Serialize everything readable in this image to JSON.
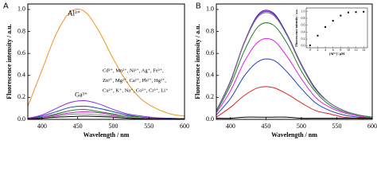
{
  "chart_data": [
    {
      "type": "line",
      "panel_label": "A",
      "x_label": "Wavelength / nm",
      "y_label": "Fluorescence intensity / a.u.",
      "xlim": [
        380,
        600
      ],
      "xticks": [
        400,
        450,
        500,
        550,
        600
      ],
      "ylim": [
        0,
        1.05
      ],
      "yticks": [
        {
          "value": 0,
          "label": "0.0"
        },
        0.2,
        0.4,
        0.6,
        0.8,
        {
          "value": 1,
          "label": "1.0"
        }
      ],
      "x": [
        380,
        400,
        420,
        440,
        460,
        480,
        500,
        520,
        540,
        560,
        580,
        600
      ],
      "series": [
        {
          "color": "#f5901e",
          "values": [
            0.12,
            0.45,
            0.78,
            0.98,
            0.98,
            0.8,
            0.55,
            0.33,
            0.18,
            0.1,
            0.05,
            0.03
          ]
        },
        {
          "color": "#8a2be2",
          "values": [
            0.01,
            0.04,
            0.1,
            0.155,
            0.17,
            0.14,
            0.09,
            0.05,
            0.03,
            0.015,
            0.01,
            0.005
          ]
        },
        {
          "color": "#2040c0",
          "values": [
            0.01,
            0.03,
            0.07,
            0.11,
            0.12,
            0.1,
            0.07,
            0.04,
            0.02,
            0.01,
            0.01,
            0.005
          ]
        },
        {
          "color": "#208020",
          "values": [
            0.01,
            0.02,
            0.05,
            0.08,
            0.09,
            0.07,
            0.05,
            0.03,
            0.02,
            0.01,
            0.005,
            0.005
          ]
        },
        {
          "color": "#c020c0",
          "values": [
            0.01,
            0.02,
            0.04,
            0.06,
            0.07,
            0.06,
            0.04,
            0.02,
            0.01,
            0.01,
            0.005,
            0.005
          ]
        },
        {
          "color": "#808080",
          "values": [
            0.005,
            0.01,
            0.03,
            0.045,
            0.05,
            0.04,
            0.03,
            0.02,
            0.01,
            0.005,
            0.005,
            0.005
          ]
        },
        {
          "color": "#000000",
          "values": [
            0.005,
            0.01,
            0.02,
            0.025,
            0.03,
            0.025,
            0.02,
            0.01,
            0.005,
            0.005,
            0.005,
            0.005
          ]
        }
      ],
      "annotations": [
        "Al³⁺",
        "Ga³⁺",
        "Cd²⁺, Mn²⁺, Ni²⁺, Ag⁺, Fe³⁺,",
        "Zn²⁺, Mg²⁺, Ca²⁺, Pb²⁺, Hg²⁺,",
        "Cu²⁺, K⁺, Na⁺, Co²⁺, Cr³⁺, Li⁺"
      ]
    },
    {
      "type": "line",
      "panel_label": "B",
      "x_label": "Wavelength / nm",
      "y_label": "Fluorescence intensity / a.u.",
      "xlim": [
        380,
        600
      ],
      "xticks": [
        400,
        450,
        500,
        550,
        600
      ],
      "ylim": [
        0,
        1.05
      ],
      "yticks": [
        {
          "value": 0,
          "label": "0.0"
        },
        0.2,
        0.4,
        0.6,
        0.8,
        {
          "value": 1,
          "label": "1.0"
        }
      ],
      "x": [
        380,
        400,
        420,
        440,
        460,
        480,
        500,
        520,
        540,
        560,
        580,
        600
      ],
      "series": [
        {
          "color": "#1a1a8c",
          "values": [
            0.08,
            0.35,
            0.71,
            0.96,
            0.97,
            0.77,
            0.5,
            0.28,
            0.15,
            0.08,
            0.04,
            0.02
          ]
        },
        {
          "color": "#8a2be2",
          "values": [
            0.08,
            0.34,
            0.71,
            0.95,
            0.96,
            0.76,
            0.49,
            0.27,
            0.15,
            0.08,
            0.04,
            0.02
          ]
        },
        {
          "color": "#808080",
          "values": [
            0.08,
            0.34,
            0.7,
            0.94,
            0.95,
            0.76,
            0.49,
            0.27,
            0.15,
            0.08,
            0.04,
            0.02
          ]
        },
        {
          "color": "#208020",
          "values": [
            0.07,
            0.31,
            0.63,
            0.85,
            0.86,
            0.69,
            0.44,
            0.25,
            0.13,
            0.07,
            0.04,
            0.02
          ]
        },
        {
          "color": "#e020e0",
          "values": [
            0.06,
            0.26,
            0.53,
            0.71,
            0.72,
            0.57,
            0.37,
            0.2,
            0.11,
            0.06,
            0.03,
            0.01
          ]
        },
        {
          "color": "#1f3fbf",
          "values": [
            0.04,
            0.19,
            0.4,
            0.53,
            0.54,
            0.43,
            0.28,
            0.15,
            0.08,
            0.04,
            0.02,
            0.01
          ]
        },
        {
          "color": "#e02020",
          "values": [
            0.02,
            0.11,
            0.22,
            0.29,
            0.29,
            0.23,
            0.15,
            0.08,
            0.05,
            0.02,
            0.01,
            0.01
          ]
        },
        {
          "color": "#000000",
          "values": [
            0.01,
            0.01,
            0.02,
            0.02,
            0.02,
            0.02,
            0.01,
            0.01,
            0.01,
            0.01,
            0.01,
            0.01
          ]
        }
      ]
    },
    {
      "type": "scatter",
      "x_label": "[Al³⁺] / μM",
      "y_label": "Fluorescence intensity / a.u.",
      "xlim": [
        -1,
        15
      ],
      "xticks": [
        0,
        2,
        4,
        6,
        8,
        10,
        12,
        14
      ],
      "ylim": [
        -0.05,
        1.1
      ],
      "yticks": [
        {
          "value": 0,
          "label": "0.0"
        },
        0.2,
        0.4,
        0.6,
        0.8,
        {
          "value": 1,
          "label": "1.0"
        }
      ],
      "color": "#000000",
      "x": [
        0,
        2,
        4,
        6,
        8,
        10,
        12,
        14
      ],
      "values": [
        0.02,
        0.3,
        0.55,
        0.73,
        0.88,
        0.97,
        0.98,
        0.99
      ]
    }
  ]
}
